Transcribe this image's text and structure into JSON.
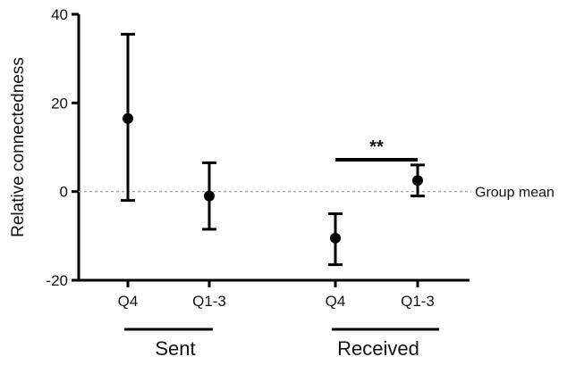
{
  "chart_data": {
    "type": "scatter",
    "ylabel": "Relative connectedness",
    "ylim": [
      -20,
      40
    ],
    "yticks": [
      {
        "value": -20,
        "label": "-20"
      },
      {
        "value": 0,
        "label": "0"
      },
      {
        "value": 20,
        "label": "20"
      },
      {
        "value": 40,
        "label": "40"
      }
    ],
    "reference_line": {
      "value": 0,
      "label": "Group mean",
      "style": "dotted",
      "color": "#aaaaaa"
    },
    "groups": [
      {
        "name": "Sent",
        "categories": [
          "Q4",
          "Q1-3"
        ]
      },
      {
        "name": "Received",
        "categories": [
          "Q4",
          "Q1-3"
        ]
      }
    ],
    "points": [
      {
        "group": "Sent",
        "category": "Q4",
        "mean": 16.5,
        "lower": -2,
        "upper": 35.5
      },
      {
        "group": "Sent",
        "category": "Q1-3",
        "mean": -1,
        "lower": -8.5,
        "upper": 6.5
      },
      {
        "group": "Received",
        "category": "Q4",
        "mean": -10.5,
        "lower": -16.5,
        "upper": -5
      },
      {
        "group": "Received",
        "category": "Q1-3",
        "mean": 2.5,
        "lower": -1,
        "upper": 6
      }
    ],
    "significance": [
      {
        "between": [
          2,
          3
        ],
        "label": "**",
        "y": 10
      }
    ],
    "grid": false,
    "legend": "none",
    "marker_color": "#000000"
  }
}
